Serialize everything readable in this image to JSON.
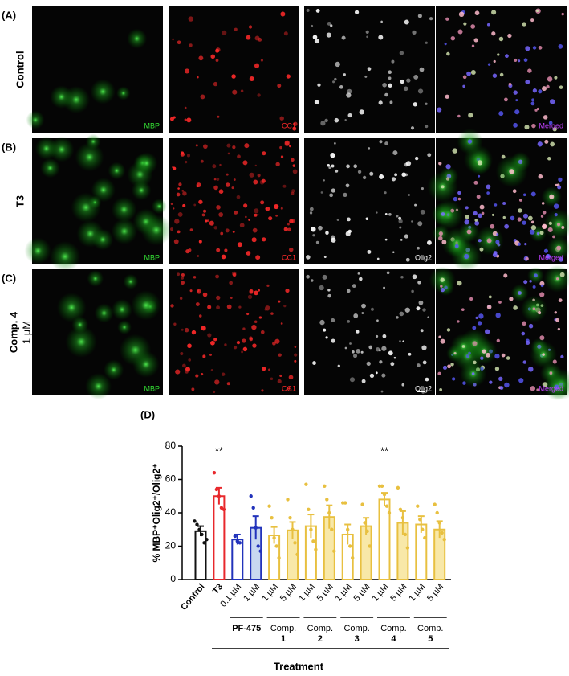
{
  "panels": [
    {
      "label": "(A)",
      "row": [
        "Control"
      ],
      "channels": [
        "MBP",
        "CC1",
        null,
        "Merged"
      ]
    },
    {
      "label": "(B)",
      "row": [
        "T3"
      ],
      "channels": [
        "MBP",
        "CC1",
        "Olig2",
        "Merged"
      ]
    },
    {
      "label": "(C)",
      "row": [
        "Comp. 4",
        "1 µM"
      ],
      "channels": [
        "MBP",
        "CC1",
        "Olig2",
        "Merged"
      ]
    }
  ],
  "chart_data": {
    "type": "bar",
    "panel_label": "(D)",
    "ylabel": "% MBP⁺Olig2⁺/Olig2⁺",
    "xlabel": "Treatment",
    "categories": [
      "Control",
      "T3",
      "0.1 µM",
      "1 µM",
      "1 µM",
      "5 µM",
      "1 µM",
      "5 µM",
      "1 µM",
      "5 µM",
      "1 µM",
      "5 µM",
      "1 µM",
      "5 µM"
    ],
    "values": [
      29,
      50,
      24,
      31,
      26.5,
      29.5,
      32,
      37.5,
      27,
      32,
      48,
      34,
      33,
      30
    ],
    "errors": [
      3,
      5,
      3,
      7,
      5,
      5,
      7,
      7,
      6,
      5,
      4,
      7,
      5,
      5
    ],
    "points": [
      [
        35,
        33,
        30,
        27,
        22,
        24
      ],
      [
        64,
        54,
        50,
        43,
        42
      ],
      [
        26,
        23,
        22
      ],
      [
        50,
        43,
        31,
        20,
        17
      ],
      [
        44,
        37,
        25,
        20,
        13
      ],
      [
        48,
        37,
        30,
        22,
        15
      ],
      [
        57,
        42,
        30,
        23,
        18
      ],
      [
        56,
        48,
        40,
        30,
        17
      ],
      [
        46,
        46,
        30,
        20,
        13
      ],
      [
        45,
        34,
        29,
        20
      ],
      [
        56,
        56,
        51,
        44,
        40
      ],
      [
        55,
        42,
        37,
        27,
        19
      ],
      [
        44,
        36,
        30,
        25
      ],
      [
        45,
        40,
        34,
        28,
        24
      ]
    ],
    "colors": [
      "#111111",
      "#e8282c",
      "#2233bb",
      "#2233bb",
      "#e8c040",
      "#e8c040",
      "#e8c040",
      "#e8c040",
      "#e8c040",
      "#e8c040",
      "#e8c040",
      "#e8c040",
      "#e8c040",
      "#e8c040"
    ],
    "fills": [
      "#ffffff",
      "#ffffff",
      "#ffffff",
      "#c8d8f0",
      "#ffffff",
      "#f8e8a8",
      "#ffffff",
      "#f8e8a8",
      "#ffffff",
      "#f8e8a8",
      "#ffffff",
      "#f8e8a8",
      "#ffffff",
      "#f8e8a8"
    ],
    "significance_labels": [
      null,
      "**",
      null,
      null,
      null,
      null,
      null,
      null,
      null,
      null,
      "**",
      null,
      null,
      null
    ],
    "groups": [
      {
        "label": "PF-475"
      },
      {
        "label": "Comp.",
        "number": "1"
      },
      {
        "label": "Comp.",
        "number": "2"
      },
      {
        "label": "Comp.",
        "number": "3"
      },
      {
        "label": "Comp.",
        "number": "4"
      },
      {
        "label": "Comp.",
        "number": "5"
      }
    ],
    "ylim": [
      0,
      80
    ],
    "yticks": [
      0,
      20,
      40,
      60,
      80
    ]
  }
}
